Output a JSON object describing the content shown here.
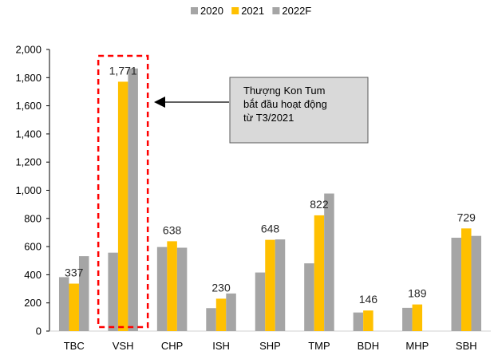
{
  "chart_data": {
    "type": "bar",
    "categories": [
      "TBC",
      "VSH",
      "CHP",
      "ISH",
      "SHP",
      "TMP",
      "BDH",
      "MHP",
      "SBH"
    ],
    "series": [
      {
        "name": "2020",
        "values": [
          383,
          557,
          597,
          163,
          416,
          481,
          132,
          165,
          663
        ]
      },
      {
        "name": "2021",
        "values": [
          337,
          1771,
          638,
          230,
          648,
          822,
          146,
          189,
          729
        ]
      },
      {
        "name": "2022F",
        "values": [
          532,
          1865,
          592,
          267,
          651,
          977,
          null,
          null,
          676
        ]
      }
    ],
    "data_labels": [
      "337",
      "1,771",
      "638",
      "230",
      "648",
      "822",
      "146",
      "189",
      "729"
    ],
    "ylim": [
      0,
      2000
    ],
    "yticks": [
      "0",
      "200",
      "400",
      "600",
      "800",
      "1,000",
      "1,200",
      "1,400",
      "1,600",
      "1,800",
      "2,000"
    ],
    "legend_position": "top-center",
    "grid": false,
    "colors": {
      "2020": "#a5a5a5",
      "2021": "#ffc000",
      "2022F": "#a5a5a5"
    },
    "annotation": {
      "lines": [
        "Thượng Kon Tum",
        "bắt đầu hoạt động",
        "từ T3/2021"
      ],
      "target": "VSH",
      "box_fill": "#d9d9d9",
      "highlight_border": "#ff0000"
    },
    "xlabel": "",
    "ylabel": "",
    "title": ""
  }
}
